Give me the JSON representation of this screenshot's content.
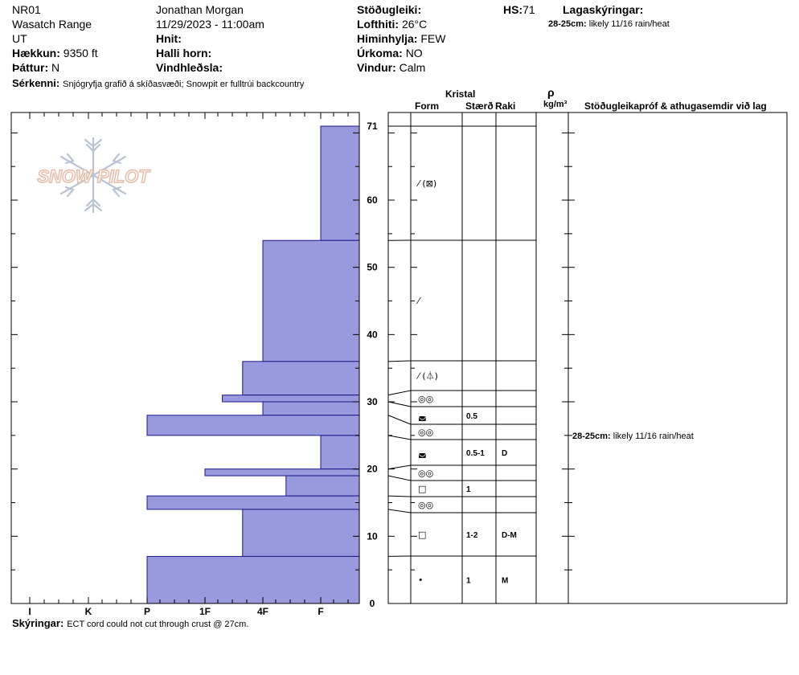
{
  "header": {
    "pit_id": "NR01",
    "range": "Wasatch Range",
    "state": "UT",
    "elevation_label": "Hækkun:",
    "elevation_value": "9350 ft",
    "aspect_label": "Þáttur:",
    "aspect_value": "N",
    "observer": "Jonathan Morgan",
    "datetime": "11/29/2023 - 11:00am",
    "coords_label": "Hnit:",
    "slope_label": "Halli horn:",
    "wind_loading_label": "Vindhleðsla:",
    "stability_label": "Stöðugleiki:",
    "air_temp_label": "Lofthiti:",
    "air_temp_value": "26°C",
    "sky_label": "Himinhylja:",
    "sky_value": "FEW",
    "precip_label": "Úrkoma:",
    "precip_value": "NO",
    "wind_label": "Vindur:",
    "wind_value": "Calm",
    "hs_label": "HS:",
    "hs_value": "71",
    "layer_notes_label": "Lagaskýringar:",
    "layer_note_depth": "28-25cm:",
    "layer_note_text": "likely 11/16 rain/heat",
    "features_label": "Sérkenni:",
    "features_text": "Snjógryfja grafið á skíðasvæði;  Snowpit er fulltrúi backcountry"
  },
  "footer": {
    "notes_label": "Skýringar:",
    "notes_text": "ECT cord could not cut through crust @ 27cm."
  },
  "columns": {
    "crystal": "Kristal",
    "form": "Form",
    "size": "Stærð",
    "moisture": "Raki",
    "rho": "ρ",
    "density_unit": "kg/m³",
    "stability_header": "Stöðugleikapróf & athugasemdir við lag"
  },
  "logo": {
    "text": "SNOW PILOT"
  },
  "chart_data": {
    "type": "bar",
    "orientation": "horizontal",
    "height_ticks": [
      "0",
      "10",
      "20",
      "30",
      "40",
      "50",
      "60",
      "71"
    ],
    "hs": 71,
    "hardness_ticks": [
      "I",
      "K",
      "P",
      "1F",
      "4F",
      "F"
    ],
    "hardness_scale": "F(right)=1, 4F=2, 1F=3, P=4, K=5, I=6",
    "layers": [
      {
        "top": 71,
        "bottom": 54,
        "hardness": 1,
        "form": "⁄ (⊠)",
        "size": "",
        "moisture": ""
      },
      {
        "top": 54,
        "bottom": 36,
        "hardness": 2,
        "form": "⁄",
        "size": "",
        "moisture": ""
      },
      {
        "top": 36,
        "bottom": 31,
        "hardness": 2.35,
        "form": "⁄ (⏃)",
        "size": "",
        "moisture": ""
      },
      {
        "top": 31,
        "bottom": 30,
        "hardness": 2.7,
        "form": "◎◎",
        "size": "",
        "moisture": ""
      },
      {
        "top": 30,
        "bottom": 28,
        "hardness": 2,
        "form": "◛",
        "size": "0.5",
        "moisture": ""
      },
      {
        "top": 28,
        "bottom": 25,
        "hardness": 4,
        "form": "◎◎",
        "size": "",
        "moisture": ""
      },
      {
        "top": 25,
        "bottom": 20,
        "hardness": 1,
        "form": "◛",
        "size": "0.5-1",
        "moisture": "D"
      },
      {
        "top": 20,
        "bottom": 19,
        "hardness": 3.0,
        "form": "◎◎",
        "size": "",
        "moisture": ""
      },
      {
        "top": 19,
        "bottom": 16,
        "hardness": 1.6,
        "form": "□",
        "size": "1",
        "moisture": ""
      },
      {
        "top": 16,
        "bottom": 14,
        "hardness": 4,
        "form": "◎◎",
        "size": "",
        "moisture": ""
      },
      {
        "top": 14,
        "bottom": 7,
        "hardness": 2.35,
        "form": "□",
        "size": "1-2",
        "moisture": "D-M"
      },
      {
        "top": 7,
        "bottom": 0,
        "hardness": 4,
        "form": "•",
        "size": "1",
        "moisture": "M"
      }
    ],
    "annotations": [
      {
        "depth": "28-25cm:",
        "text": "likely 11/16 rain/heat",
        "height": 25
      }
    ],
    "bar_color": "#9999dd"
  }
}
